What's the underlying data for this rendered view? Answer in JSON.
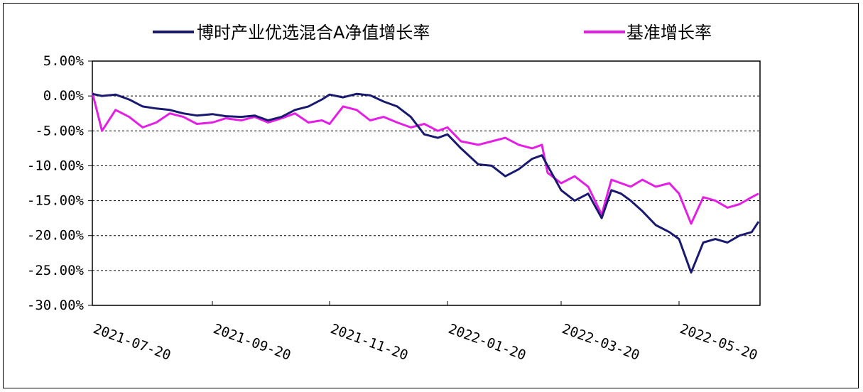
{
  "chart_data": {
    "type": "line",
    "title": "",
    "xlabel": "",
    "ylabel": "",
    "ylim": [
      -30,
      5
    ],
    "y_ticks": [
      5,
      0,
      -5,
      -10,
      -15,
      -20,
      -25,
      -30
    ],
    "y_tick_labels": [
      "5.00%",
      "0.00%",
      "-5.00%",
      "-10.00%",
      "-15.00%",
      "-20.00%",
      "-25.00%",
      "-30.00%"
    ],
    "x_tick_labels": [
      "2021-07-20",
      "2021-09-20",
      "2021-11-20",
      "2022-01-20",
      "2022-03-20",
      "2022-05-20"
    ],
    "grid": "dashed horizontal",
    "legend_position": "top",
    "series": [
      {
        "name": "博时产业优选混合A净值增长率",
        "color": "#191970",
        "x": [
          "2021-07-20",
          "2021-07-25",
          "2021-08-01",
          "2021-08-08",
          "2021-08-15",
          "2021-08-22",
          "2021-08-29",
          "2021-09-05",
          "2021-09-12",
          "2021-09-20",
          "2021-09-27",
          "2021-10-05",
          "2021-10-12",
          "2021-10-19",
          "2021-10-26",
          "2021-11-02",
          "2021-11-09",
          "2021-11-16",
          "2021-11-20",
          "2021-11-27",
          "2021-12-04",
          "2021-12-11",
          "2021-12-18",
          "2021-12-25",
          "2022-01-01",
          "2022-01-08",
          "2022-01-15",
          "2022-01-20",
          "2022-01-27",
          "2022-02-05",
          "2022-02-12",
          "2022-02-19",
          "2022-02-26",
          "2022-03-05",
          "2022-03-10",
          "2022-03-13",
          "2022-03-20",
          "2022-03-27",
          "2022-04-03",
          "2022-04-10",
          "2022-04-15",
          "2022-04-20",
          "2022-04-25",
          "2022-05-01",
          "2022-05-08",
          "2022-05-15",
          "2022-05-20",
          "2022-05-27",
          "2022-06-03",
          "2022-06-10",
          "2022-06-17",
          "2022-06-24",
          "2022-07-01",
          "2022-07-05"
        ],
        "values": [
          0.3,
          0.0,
          0.2,
          -0.5,
          -1.5,
          -1.8,
          -2.0,
          -2.5,
          -2.8,
          -2.6,
          -2.9,
          -3.0,
          -2.8,
          -3.5,
          -3.0,
          -2.0,
          -1.5,
          -0.5,
          0.2,
          -0.2,
          0.3,
          0.1,
          -0.8,
          -1.5,
          -3.0,
          -5.5,
          -6.0,
          -5.5,
          -7.5,
          -9.8,
          -10.0,
          -11.5,
          -10.5,
          -9.0,
          -8.5,
          -10.0,
          -13.5,
          -15.0,
          -14.0,
          -17.5,
          -13.5,
          -14.0,
          -15.0,
          -16.5,
          -18.5,
          -19.5,
          -20.5,
          -25.3,
          -21.0,
          -20.5,
          -21.0,
          -20.0,
          -19.5,
          -18.0
        ]
      },
      {
        "name": "基准增长率",
        "color": "#e41ee4",
        "x": [
          "2021-07-20",
          "2021-07-25",
          "2021-08-01",
          "2021-08-08",
          "2021-08-15",
          "2021-08-22",
          "2021-08-29",
          "2021-09-05",
          "2021-09-12",
          "2021-09-20",
          "2021-09-27",
          "2021-10-05",
          "2021-10-12",
          "2021-10-19",
          "2021-10-26",
          "2021-11-02",
          "2021-11-09",
          "2021-11-16",
          "2021-11-20",
          "2021-11-27",
          "2021-12-04",
          "2021-12-11",
          "2021-12-18",
          "2021-12-25",
          "2022-01-01",
          "2022-01-08",
          "2022-01-15",
          "2022-01-20",
          "2022-01-27",
          "2022-02-05",
          "2022-02-12",
          "2022-02-19",
          "2022-02-26",
          "2022-03-05",
          "2022-03-10",
          "2022-03-13",
          "2022-03-20",
          "2022-03-27",
          "2022-04-03",
          "2022-04-10",
          "2022-04-15",
          "2022-04-20",
          "2022-04-25",
          "2022-05-01",
          "2022-05-08",
          "2022-05-15",
          "2022-05-20",
          "2022-05-27",
          "2022-06-03",
          "2022-06-10",
          "2022-06-17",
          "2022-06-24",
          "2022-07-01",
          "2022-07-05"
        ],
        "values": [
          0.5,
          -5.0,
          -2.0,
          -3.0,
          -4.5,
          -3.8,
          -2.5,
          -3.0,
          -4.0,
          -3.8,
          -3.2,
          -3.5,
          -3.0,
          -3.8,
          -3.2,
          -2.5,
          -3.8,
          -3.5,
          -4.0,
          -1.5,
          -2.0,
          -3.5,
          -3.0,
          -3.8,
          -4.5,
          -4.0,
          -5.0,
          -4.5,
          -6.5,
          -7.0,
          -6.5,
          -6.0,
          -7.0,
          -7.5,
          -7.0,
          -11.0,
          -12.5,
          -11.5,
          -13.0,
          -17.0,
          -12.0,
          -12.5,
          -13.0,
          -12.0,
          -13.0,
          -12.5,
          -14.0,
          -18.3,
          -14.5,
          -15.0,
          -16.0,
          -15.5,
          -14.5,
          -14.0
        ]
      }
    ]
  }
}
